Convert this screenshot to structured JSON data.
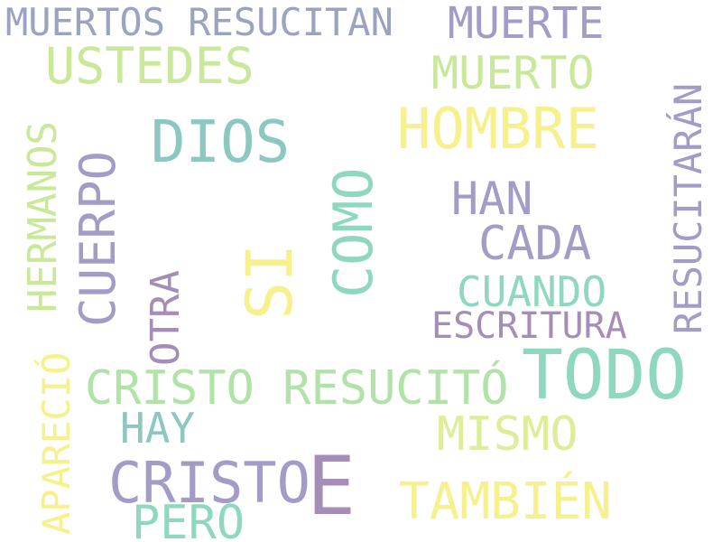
{
  "word_cloud": {
    "palette": {
      "slate": "#9ba3c0",
      "lavender": "#a39cc6",
      "lime": "#c9e89a",
      "yellow": "#f6f08d",
      "teal": "#8cc8c0",
      "mint": "#8fd8bf",
      "purple": "#a48eb8",
      "green": "#b1e3a8",
      "yellow_green": "#dcee98"
    },
    "words": [
      {
        "text": "MUERTOS RESUCITAN",
        "color": "#9ba3c0"
      },
      {
        "text": "MUERTE",
        "color": "#a39cc6"
      },
      {
        "text": "USTEDES",
        "color": "#c9e89a"
      },
      {
        "text": "MUERTO",
        "color": "#c9e89a"
      },
      {
        "text": "HOMBRE",
        "color": "#f6f08d"
      },
      {
        "text": "DIOS",
        "color": "#8cc8c0"
      },
      {
        "text": "RESUCITARÁN",
        "color": "#a39cc6"
      },
      {
        "text": "HERMANOS",
        "color": "#c9e89a"
      },
      {
        "text": "CUERPO",
        "color": "#a39cc6"
      },
      {
        "text": "COMO",
        "color": "#8fd8bf"
      },
      {
        "text": "HAN",
        "color": "#a39cc6"
      },
      {
        "text": "CADA",
        "color": "#a39cc6"
      },
      {
        "text": "SI",
        "color": "#f6f08d"
      },
      {
        "text": "OTRA",
        "color": "#a48eb8"
      },
      {
        "text": "CUANDO",
        "color": "#8fd8bf"
      },
      {
        "text": "ESCRITURA",
        "color": "#a48eb8"
      },
      {
        "text": "TODO",
        "color": "#8fd8bf"
      },
      {
        "text": "CRISTO RESUCITÓ",
        "color": "#b1e3a8"
      },
      {
        "text": "APARECIÓ",
        "color": "#f6f08d"
      },
      {
        "text": "HAY",
        "color": "#8cc8c0"
      },
      {
        "text": "MISMO",
        "color": "#dcee98"
      },
      {
        "text": "CRISTO",
        "color": "#a39cc6"
      },
      {
        "text": "E",
        "color": "#a48eb8"
      },
      {
        "text": "TAMBIÉN",
        "color": "#f6f08d"
      },
      {
        "text": "PERO",
        "color": "#8fd8bf"
      }
    ]
  }
}
